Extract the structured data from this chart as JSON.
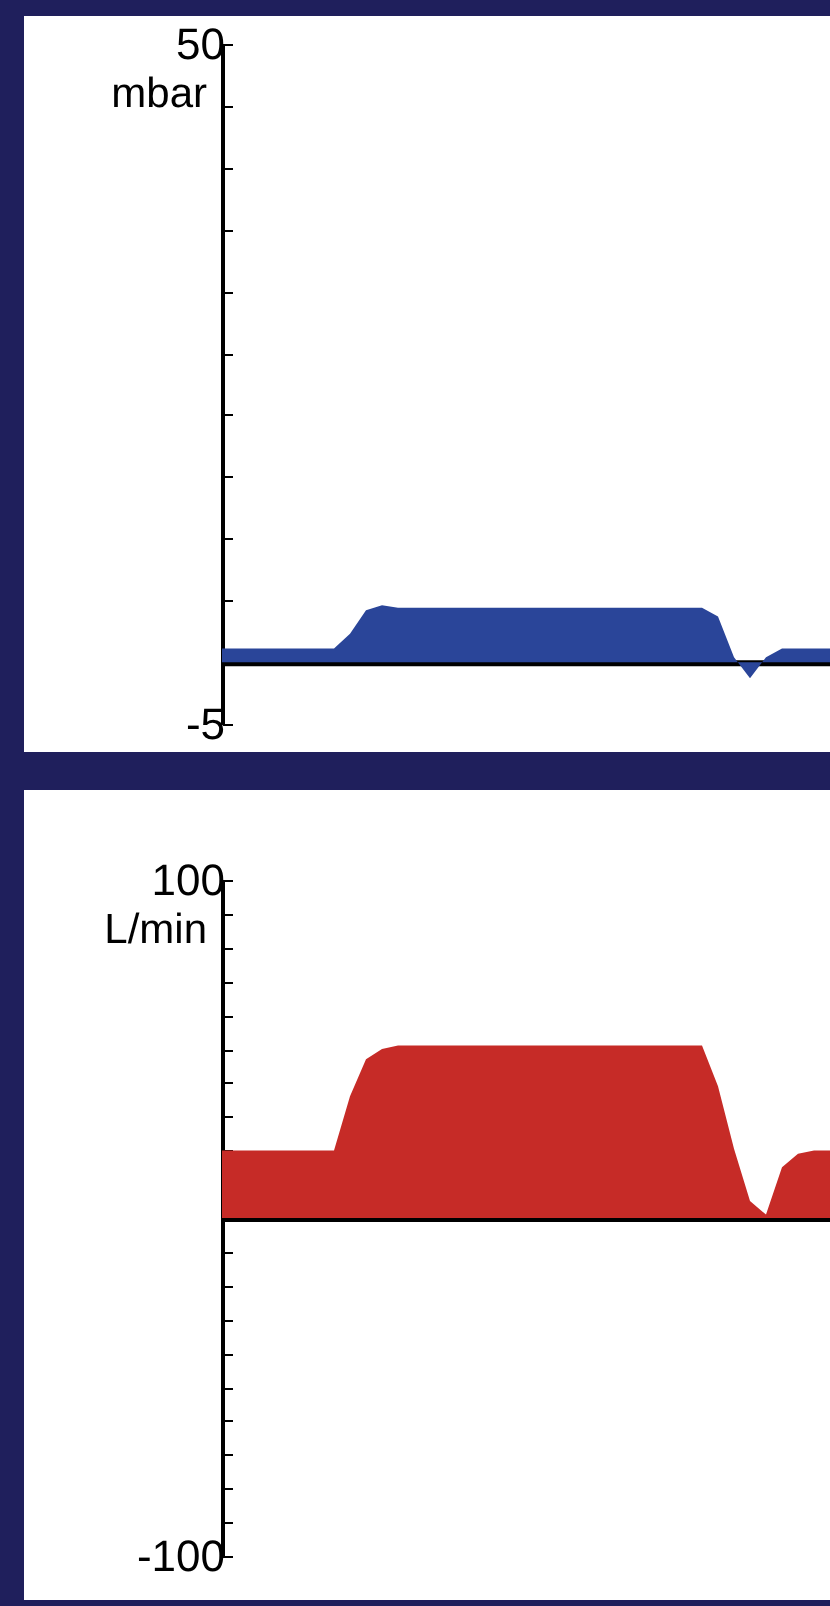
{
  "chart_data": [
    {
      "type": "area",
      "ylabel": "mbar",
      "tick_labels": "y",
      "categories": [
        null,
        null,
        null,
        null,
        null,
        null,
        null,
        null,
        null,
        null,
        null,
        null,
        null,
        null,
        null,
        null,
        null,
        null,
        null,
        null,
        null,
        null,
        null,
        null,
        null,
        null,
        null,
        null,
        null,
        null,
        null,
        null,
        null,
        null,
        null,
        null,
        null,
        null,
        null
      ],
      "series": [
        {
          "color": "#2a4599",
          "values": [
            1.1,
            1.1,
            1.1,
            1.1,
            1.1,
            1.1,
            1.1,
            1.1,
            2.3,
            4.2,
            4.6,
            4.4,
            4.4,
            4.4,
            4.4,
            4.4,
            4.4,
            4.4,
            4.4,
            4.4,
            4.4,
            4.4,
            4.4,
            4.4,
            4.4,
            4.4,
            4.4,
            4.4,
            4.4,
            4.4,
            4.4,
            3.7,
            0.4,
            -1.3,
            0.4,
            1.1,
            1.1,
            1.1,
            1.1
          ]
        }
      ],
      "ylim": [
        -5,
        50
      ],
      "yticks": [
        50,
        {
          "value": 45,
          "label": null
        },
        {
          "value": 40,
          "label": null
        },
        {
          "value": 35,
          "label": null
        },
        {
          "value": 30,
          "label": null
        },
        {
          "value": 25,
          "label": null
        },
        {
          "value": 20,
          "label": null
        },
        {
          "value": 15,
          "label": null
        },
        {
          "value": 10,
          "label": null
        },
        {
          "value": 5,
          "label": null
        },
        {
          "value": 0,
          "label": null
        },
        -5
      ]
    },
    {
      "type": "area",
      "ylabel": "L/min",
      "tick_labels": "y",
      "categories": [
        null,
        null,
        null,
        null,
        null,
        null,
        null,
        null,
        null,
        null,
        null,
        null,
        null,
        null,
        null,
        null,
        null,
        null,
        null,
        null,
        null,
        null,
        null,
        null,
        null,
        null,
        null,
        null,
        null,
        null,
        null,
        null,
        null,
        null,
        null,
        null,
        null,
        null,
        null
      ],
      "series": [
        {
          "color": "#c62b27",
          "values": [
            20,
            20,
            20,
            20,
            20,
            20,
            20,
            20,
            36,
            47,
            50,
            51,
            51,
            51,
            51,
            51,
            51,
            51,
            51,
            51,
            51,
            51,
            51,
            51,
            51,
            51,
            51,
            51,
            51,
            51,
            51,
            39,
            20.5,
            5,
            1,
            15,
            19,
            20,
            20
          ]
        }
      ],
      "ylim": [
        -100,
        100
      ],
      "yticks": [
        100,
        {
          "value": 90,
          "label": null
        },
        {
          "value": 80,
          "label": null
        },
        {
          "value": 70,
          "label": null
        },
        {
          "value": 60,
          "label": null
        },
        {
          "value": 50,
          "label": null
        },
        {
          "value": 40,
          "label": null
        },
        {
          "value": 30,
          "label": null
        },
        {
          "value": 20,
          "label": null
        },
        {
          "value": 10,
          "label": null
        },
        {
          "value": 0,
          "label": null
        },
        {
          "value": -10,
          "label": null
        },
        {
          "value": -20,
          "label": null
        },
        {
          "value": -30,
          "label": null
        },
        {
          "value": -40,
          "label": null
        },
        {
          "value": -50,
          "label": null
        },
        {
          "value": -60,
          "label": null
        },
        {
          "value": -70,
          "label": null
        },
        {
          "value": -80,
          "label": null
        },
        {
          "value": -90,
          "label": null
        },
        -100
      ]
    }
  ]
}
